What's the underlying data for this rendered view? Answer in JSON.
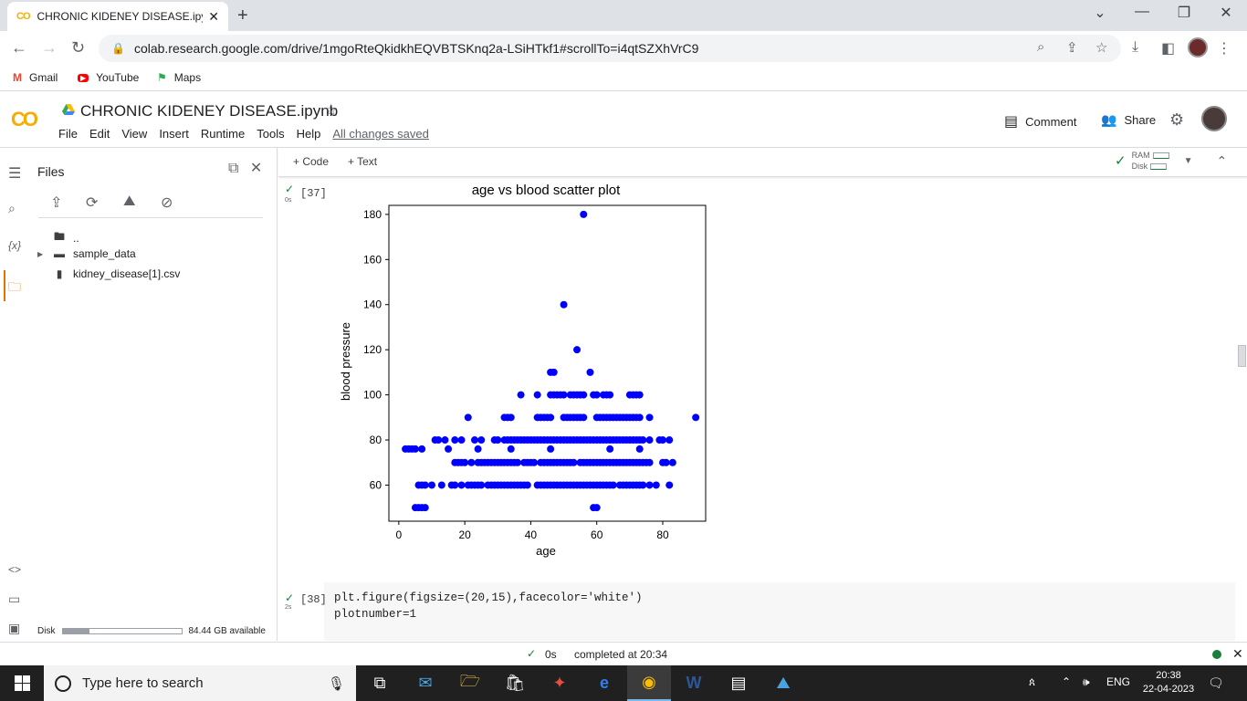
{
  "browser": {
    "tab_title": "CHRONIC KIDENEY DISEASE.ipyn",
    "tab_icon": "CO",
    "url": "colab.research.google.com/drive/1mgoRteQkidkhEQVBTSKnq2a-LSiHTkf1#scrollTo=i4qtSZXhVrC9",
    "bookmarks": [
      "Gmail",
      "YouTube",
      "Maps"
    ]
  },
  "colab": {
    "logo": "CO",
    "notebook_title": "CHRONIC KIDENEY DISEASE.ipynb",
    "menu": [
      "File",
      "Edit",
      "View",
      "Insert",
      "Runtime",
      "Tools",
      "Help"
    ],
    "saved_status": "All changes saved",
    "comment_label": "Comment",
    "share_label": "Share",
    "add_code": "+ Code",
    "add_text": "+ Text",
    "ram_label": "RAM",
    "disk_label": "Disk"
  },
  "files_panel": {
    "title": "Files",
    "parent": "..",
    "items": [
      "sample_data",
      "kidney_disease[1].csv"
    ],
    "disk_label": "Disk",
    "disk_available": "84.44 GB available",
    "disk_used_fraction": 0.22
  },
  "cells": [
    {
      "count": "[37]",
      "time": "0s"
    },
    {
      "count": "[38]",
      "time": "2s",
      "code_lines": [
        "plt.figure(figsize=(20,15),facecolor='white')",
        "plotnumber=1"
      ]
    }
  ],
  "status": {
    "time": "0s",
    "text": "completed at 20:34"
  },
  "taskbar": {
    "search_placeholder": "Type here to search",
    "lang": "ENG",
    "time": "20:38",
    "date": "22-04-2023",
    "notif": "1"
  },
  "colors": {
    "accent": "#f9ab00",
    "point": "#0000ff",
    "ok": "#188038"
  },
  "chart_data": {
    "type": "scatter",
    "title": "age vs blood scatter plot",
    "xlabel": "age",
    "ylabel": "blood pressure",
    "xlim": [
      -3,
      93
    ],
    "ylim": [
      44,
      184
    ],
    "xticks": [
      0,
      20,
      40,
      60,
      80
    ],
    "yticks": [
      60,
      80,
      100,
      120,
      140,
      160,
      180
    ],
    "series": [
      {
        "points": [
          [
            2,
            76
          ],
          [
            3,
            76
          ],
          [
            4,
            76
          ],
          [
            5,
            76
          ],
          [
            7,
            76
          ],
          [
            15,
            76
          ],
          [
            24,
            76
          ],
          [
            34,
            76
          ],
          [
            46,
            76
          ],
          [
            64,
            76
          ],
          [
            73,
            76
          ],
          [
            5,
            50
          ],
          [
            6,
            50
          ],
          [
            7,
            50
          ],
          [
            8,
            50
          ],
          [
            59,
            50
          ],
          [
            60,
            50
          ],
          [
            6,
            60
          ],
          [
            7,
            60
          ],
          [
            8,
            60
          ],
          [
            10,
            60
          ],
          [
            13,
            60
          ],
          [
            16,
            60
          ],
          [
            17,
            60
          ],
          [
            19,
            60
          ],
          [
            21,
            60
          ],
          [
            22,
            60
          ],
          [
            23,
            60
          ],
          [
            24,
            60
          ],
          [
            25,
            60
          ],
          [
            27,
            60
          ],
          [
            28,
            60
          ],
          [
            29,
            60
          ],
          [
            30,
            60
          ],
          [
            31,
            60
          ],
          [
            32,
            60
          ],
          [
            33,
            60
          ],
          [
            34,
            60
          ],
          [
            35,
            60
          ],
          [
            36,
            60
          ],
          [
            37,
            60
          ],
          [
            38,
            60
          ],
          [
            39,
            60
          ],
          [
            42,
            60
          ],
          [
            43,
            60
          ],
          [
            44,
            60
          ],
          [
            45,
            60
          ],
          [
            46,
            60
          ],
          [
            47,
            60
          ],
          [
            48,
            60
          ],
          [
            49,
            60
          ],
          [
            50,
            60
          ],
          [
            51,
            60
          ],
          [
            52,
            60
          ],
          [
            53,
            60
          ],
          [
            54,
            60
          ],
          [
            55,
            60
          ],
          [
            56,
            60
          ],
          [
            57,
            60
          ],
          [
            58,
            60
          ],
          [
            59,
            60
          ],
          [
            60,
            60
          ],
          [
            61,
            60
          ],
          [
            62,
            60
          ],
          [
            63,
            60
          ],
          [
            64,
            60
          ],
          [
            65,
            60
          ],
          [
            67,
            60
          ],
          [
            68,
            60
          ],
          [
            69,
            60
          ],
          [
            70,
            60
          ],
          [
            71,
            60
          ],
          [
            72,
            60
          ],
          [
            73,
            60
          ],
          [
            74,
            60
          ],
          [
            76,
            60
          ],
          [
            78,
            60
          ],
          [
            82,
            60
          ],
          [
            17,
            70
          ],
          [
            18,
            70
          ],
          [
            19,
            70
          ],
          [
            20,
            70
          ],
          [
            22,
            70
          ],
          [
            24,
            70
          ],
          [
            25,
            70
          ],
          [
            26,
            70
          ],
          [
            27,
            70
          ],
          [
            28,
            70
          ],
          [
            29,
            70
          ],
          [
            30,
            70
          ],
          [
            31,
            70
          ],
          [
            32,
            70
          ],
          [
            33,
            70
          ],
          [
            34,
            70
          ],
          [
            35,
            70
          ],
          [
            36,
            70
          ],
          [
            38,
            70
          ],
          [
            39,
            70
          ],
          [
            40,
            70
          ],
          [
            41,
            70
          ],
          [
            43,
            70
          ],
          [
            44,
            70
          ],
          [
            45,
            70
          ],
          [
            46,
            70
          ],
          [
            47,
            70
          ],
          [
            48,
            70
          ],
          [
            49,
            70
          ],
          [
            50,
            70
          ],
          [
            51,
            70
          ],
          [
            52,
            70
          ],
          [
            53,
            70
          ],
          [
            55,
            70
          ],
          [
            56,
            70
          ],
          [
            57,
            70
          ],
          [
            58,
            70
          ],
          [
            59,
            70
          ],
          [
            60,
            70
          ],
          [
            61,
            70
          ],
          [
            62,
            70
          ],
          [
            63,
            70
          ],
          [
            64,
            70
          ],
          [
            65,
            70
          ],
          [
            66,
            70
          ],
          [
            67,
            70
          ],
          [
            68,
            70
          ],
          [
            69,
            70
          ],
          [
            70,
            70
          ],
          [
            71,
            70
          ],
          [
            72,
            70
          ],
          [
            73,
            70
          ],
          [
            74,
            70
          ],
          [
            75,
            70
          ],
          [
            76,
            70
          ],
          [
            80,
            70
          ],
          [
            81,
            70
          ],
          [
            83,
            70
          ],
          [
            11,
            80
          ],
          [
            12,
            80
          ],
          [
            14,
            80
          ],
          [
            17,
            80
          ],
          [
            19,
            80
          ],
          [
            23,
            80
          ],
          [
            25,
            80
          ],
          [
            29,
            80
          ],
          [
            30,
            80
          ],
          [
            32,
            80
          ],
          [
            33,
            80
          ],
          [
            34,
            80
          ],
          [
            35,
            80
          ],
          [
            36,
            80
          ],
          [
            37,
            80
          ],
          [
            38,
            80
          ],
          [
            39,
            80
          ],
          [
            40,
            80
          ],
          [
            41,
            80
          ],
          [
            42,
            80
          ],
          [
            43,
            80
          ],
          [
            44,
            80
          ],
          [
            45,
            80
          ],
          [
            46,
            80
          ],
          [
            47,
            80
          ],
          [
            48,
            80
          ],
          [
            49,
            80
          ],
          [
            50,
            80
          ],
          [
            51,
            80
          ],
          [
            52,
            80
          ],
          [
            53,
            80
          ],
          [
            54,
            80
          ],
          [
            55,
            80
          ],
          [
            56,
            80
          ],
          [
            57,
            80
          ],
          [
            58,
            80
          ],
          [
            59,
            80
          ],
          [
            60,
            80
          ],
          [
            61,
            80
          ],
          [
            62,
            80
          ],
          [
            63,
            80
          ],
          [
            64,
            80
          ],
          [
            65,
            80
          ],
          [
            66,
            80
          ],
          [
            67,
            80
          ],
          [
            68,
            80
          ],
          [
            69,
            80
          ],
          [
            70,
            80
          ],
          [
            71,
            80
          ],
          [
            72,
            80
          ],
          [
            73,
            80
          ],
          [
            74,
            80
          ],
          [
            76,
            80
          ],
          [
            79,
            80
          ],
          [
            80,
            80
          ],
          [
            82,
            80
          ],
          [
            21,
            90
          ],
          [
            32,
            90
          ],
          [
            33,
            90
          ],
          [
            34,
            90
          ],
          [
            42,
            90
          ],
          [
            43,
            90
          ],
          [
            44,
            90
          ],
          [
            45,
            90
          ],
          [
            46,
            90
          ],
          [
            50,
            90
          ],
          [
            51,
            90
          ],
          [
            52,
            90
          ],
          [
            53,
            90
          ],
          [
            54,
            90
          ],
          [
            55,
            90
          ],
          [
            56,
            90
          ],
          [
            60,
            90
          ],
          [
            61,
            90
          ],
          [
            62,
            90
          ],
          [
            63,
            90
          ],
          [
            64,
            90
          ],
          [
            65,
            90
          ],
          [
            66,
            90
          ],
          [
            67,
            90
          ],
          [
            68,
            90
          ],
          [
            69,
            90
          ],
          [
            70,
            90
          ],
          [
            71,
            90
          ],
          [
            72,
            90
          ],
          [
            73,
            90
          ],
          [
            76,
            90
          ],
          [
            90,
            90
          ],
          [
            37,
            100
          ],
          [
            42,
            100
          ],
          [
            46,
            100
          ],
          [
            47,
            100
          ],
          [
            48,
            100
          ],
          [
            49,
            100
          ],
          [
            50,
            100
          ],
          [
            52,
            100
          ],
          [
            53,
            100
          ],
          [
            54,
            100
          ],
          [
            55,
            100
          ],
          [
            56,
            100
          ],
          [
            59,
            100
          ],
          [
            60,
            100
          ],
          [
            62,
            100
          ],
          [
            63,
            100
          ],
          [
            64,
            100
          ],
          [
            70,
            100
          ],
          [
            71,
            100
          ],
          [
            72,
            100
          ],
          [
            73,
            100
          ],
          [
            46,
            110
          ],
          [
            47,
            110
          ],
          [
            58,
            110
          ],
          [
            54,
            120
          ],
          [
            50,
            140
          ],
          [
            56,
            180
          ]
        ]
      }
    ]
  }
}
